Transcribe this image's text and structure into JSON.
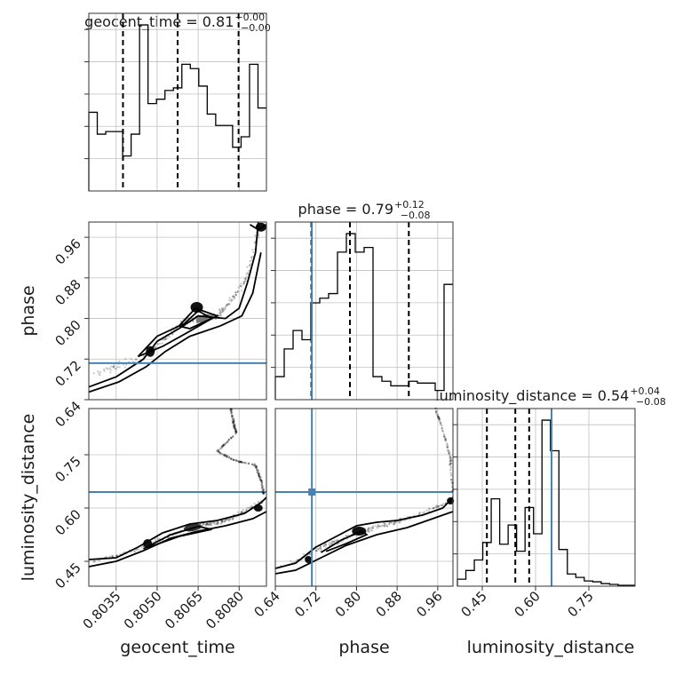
{
  "chart_data": {
    "type": "corner",
    "parameters": [
      "geocent_time",
      "phase",
      "luminosity_distance"
    ],
    "titles": [
      {
        "parameter": "geocent_time",
        "median": "0.81",
        "plus": "+0.00",
        "minus": "−0.00"
      },
      {
        "parameter": "phase",
        "median": "0.79",
        "plus": "+0.12",
        "minus": "−0.08"
      },
      {
        "parameter": "luminosity_distance",
        "median": "0.54",
        "plus": "+0.04",
        "minus": "−0.08"
      }
    ],
    "ranges": {
      "geocent_time": [
        0.8025,
        0.809
      ],
      "phase": [
        0.64,
        0.99
      ],
      "luminosity_distance": [
        0.38,
        0.88
      ]
    },
    "ticks": {
      "geocent_time": [
        "0.8035",
        "0.8050",
        "0.8065",
        "0.8080"
      ],
      "phase": [
        "0.64",
        "0.72",
        "0.80",
        "0.88",
        "0.96"
      ],
      "luminosity_distance": [
        "0.45",
        "0.60",
        "0.75"
      ]
    },
    "truths": {
      "phase": 0.712,
      "luminosity_distance": 0.645
    },
    "quantiles": {
      "geocent_time": [
        0.80375,
        0.80575,
        0.80798
      ],
      "phase": [
        0.711,
        0.787,
        0.903
      ],
      "luminosity_distance": [
        0.463,
        0.543,
        0.582
      ]
    },
    "histograms": {
      "geocent_time": [
        90,
        65,
        68,
        68,
        40,
        65,
        190,
        100,
        105,
        115,
        118,
        145,
        140,
        120,
        88,
        75,
        75,
        50,
        62,
        145,
        95
      ],
      "phase": [
        25,
        55,
        75,
        65,
        105,
        110,
        115,
        160,
        180,
        160,
        165,
        25,
        20,
        15,
        15,
        20,
        18,
        18,
        10,
        125
      ],
      "luminosity_distance": [
        8,
        18,
        30,
        50,
        100,
        48,
        70,
        40,
        90,
        60,
        190,
        155,
        42,
        14,
        10,
        6,
        5,
        3,
        2,
        1,
        1
      ]
    },
    "grid": true
  }
}
